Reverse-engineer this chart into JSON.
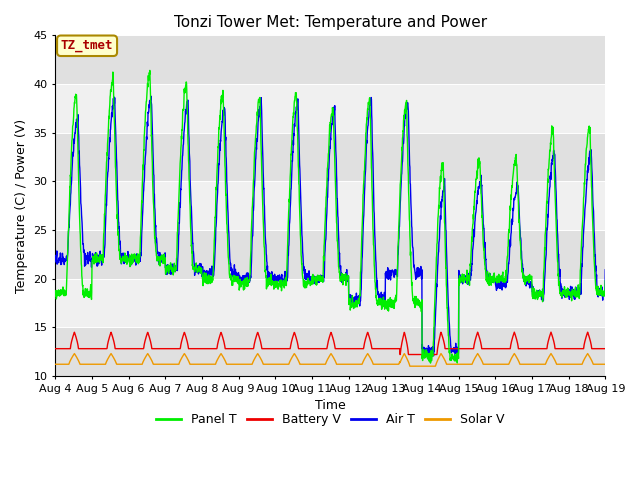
{
  "title": "Tonzi Tower Met: Temperature and Power",
  "xlabel": "Time",
  "ylabel": "Temperature (C) / Power (V)",
  "ylim": [
    10,
    45
  ],
  "legend_labels": [
    "Panel T",
    "Battery V",
    "Air T",
    "Solar V"
  ],
  "legend_colors": [
    "#00EE00",
    "#EE0000",
    "#0000EE",
    "#EE9900"
  ],
  "annotation_text": "TZ_tmet",
  "annotation_color": "#AA0000",
  "annotation_bg": "#FFFFCC",
  "annotation_border": "#AA8800",
  "background_color": "#FFFFFF",
  "plot_bg_light": "#F0F0F0",
  "plot_bg_dark": "#E0E0E0",
  "grid_color": "#FFFFFF",
  "title_fontsize": 11,
  "axis_fontsize": 9,
  "tick_fontsize": 8,
  "legend_fontsize": 9,
  "x_tick_labels": [
    "Aug 4",
    "Aug 5",
    "Aug 6",
    "Aug 7",
    "Aug 8",
    "Aug 9",
    "Aug 10",
    "Aug 11",
    "Aug 12",
    "Aug 13",
    "Aug 14",
    "Aug 15",
    "Aug 16",
    "Aug 17",
    "Aug 18",
    "Aug 19"
  ],
  "n_days": 15,
  "pts_per_day": 144,
  "stripe_bounds": [
    10,
    15,
    20,
    25,
    30,
    35,
    40,
    45
  ]
}
